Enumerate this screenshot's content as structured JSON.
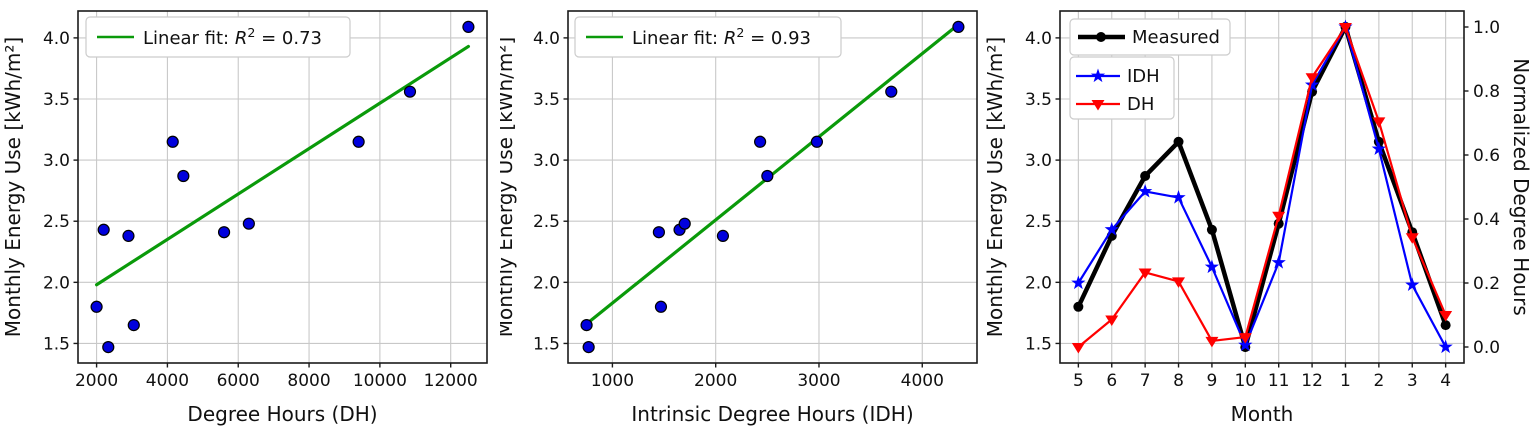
{
  "figure": {
    "background": "#ffffff",
    "grid_color": "#c8c8c8",
    "spine_color": "#1a1a1a",
    "text_color": "#111111",
    "scatter_fill": "#0000dd",
    "scatter_edge": "#000000",
    "fit_color": "#0a9a0a",
    "legend_border": "#cccccc",
    "tick_fontsize": 17,
    "label_fontsize": 20,
    "legend_fontsize": 18
  },
  "chart_data": [
    {
      "type": "scatter",
      "xlabel": "Degree Hours (DH)",
      "ylabel": "Monthly Energy Use [kWh/m²]",
      "legend": {
        "pre": "Linear fit: ",
        "sym": "R",
        "sup": "2",
        "post": " = 0.73"
      },
      "xlim": [
        1475,
        13025
      ],
      "ylim": [
        1.34,
        4.22
      ],
      "xticks": [
        "2000",
        "4000",
        "6000",
        "8000",
        "10000",
        "12000"
      ],
      "yticks": [
        "1.5",
        "2.0",
        "2.5",
        "3.0",
        "3.5",
        "4.0"
      ],
      "grid": true,
      "fit_line": {
        "x1": 2000,
        "y1": 1.98,
        "x2": 12500,
        "y2": 3.93
      },
      "points_x": [
        2000,
        2900,
        4450,
        4150,
        2200,
        2330,
        6300,
        10850,
        12500,
        9400,
        5600,
        3050
      ],
      "points_y": [
        1.8,
        2.38,
        2.87,
        3.15,
        2.43,
        1.47,
        2.48,
        3.56,
        4.09,
        3.15,
        2.41,
        1.65
      ]
    },
    {
      "type": "scatter",
      "xlabel": "Intrinsic Degree Hours (IDH)",
      "ylabel": "Monthly Energy Use [kWh/m²]",
      "legend": {
        "pre": "Linear fit: ",
        "sym": "R",
        "sup": "2",
        "post": " = 0.93"
      },
      "xlim": [
        570,
        4530
      ],
      "ylim": [
        1.34,
        4.22
      ],
      "xticks": [
        "1000",
        "2000",
        "3000",
        "4000"
      ],
      "yticks": [
        "1.5",
        "2.0",
        "2.5",
        "3.0",
        "3.5",
        "4.0"
      ],
      "grid": true,
      "fit_line": {
        "x1": 750,
        "y1": 1.66,
        "x2": 4350,
        "y2": 4.11
      },
      "points_x": [
        1470,
        2070,
        2500,
        2430,
        1650,
        770,
        1700,
        3700,
        4350,
        2980,
        1450,
        750
      ],
      "points_y": [
        1.8,
        2.38,
        2.87,
        3.15,
        2.43,
        1.47,
        2.48,
        3.56,
        4.09,
        3.15,
        2.41,
        1.65
      ]
    },
    {
      "type": "line",
      "xlabel": "Month",
      "ylabel_left": "Monthly Energy Use [kWh/m²]",
      "ylabel_right": "Normalized Degree Hours",
      "categories": [
        "5",
        "6",
        "7",
        "8",
        "9",
        "10",
        "11",
        "12",
        "1",
        "2",
        "3",
        "4"
      ],
      "ylim_left": [
        1.34,
        4.22
      ],
      "yticks_left": [
        "1.5",
        "2.0",
        "2.5",
        "3.0",
        "3.5",
        "4.0"
      ],
      "ylim_right": [
        -0.05,
        1.05
      ],
      "yticks_right": [
        "0.0",
        "0.2",
        "0.4",
        "0.6",
        "0.8",
        "1.0"
      ],
      "grid": true,
      "series": [
        {
          "name": "Measured",
          "axis": "left",
          "color": "#000000",
          "marker": "circle",
          "line_width": 4.5,
          "values": [
            1.8,
            2.38,
            2.87,
            3.15,
            2.43,
            1.47,
            2.48,
            3.56,
            4.09,
            3.15,
            2.41,
            1.65
          ]
        },
        {
          "name": "IDH",
          "axis": "right",
          "color": "#0000ff",
          "marker": "star",
          "line_width": 2.2,
          "values": [
            0.2,
            0.367,
            0.486,
            0.467,
            0.25,
            0.006,
            0.264,
            0.819,
            1.0,
            0.619,
            0.194,
            0.0
          ]
        },
        {
          "name": "DH",
          "axis": "right",
          "color": "#ff0000",
          "marker": "triangle-down",
          "line_width": 2.2,
          "values": [
            0.0,
            0.086,
            0.233,
            0.205,
            0.019,
            0.031,
            0.41,
            0.843,
            1.0,
            0.705,
            0.343,
            0.1
          ]
        }
      ]
    }
  ]
}
